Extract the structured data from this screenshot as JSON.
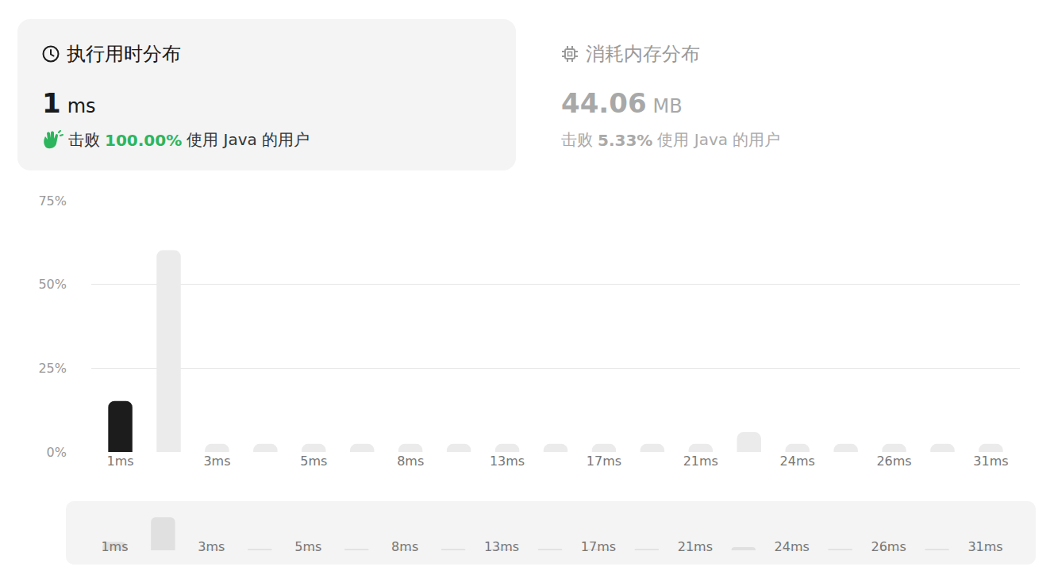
{
  "runtime": {
    "title": "执行用时分布",
    "value": "1",
    "unit": "ms",
    "beat_prefix": "击败",
    "beat": "100.00%",
    "beat_suffix": "使用 Java 的用户"
  },
  "memory": {
    "title": "消耗内存分布",
    "value": "44.06",
    "unit": "MB",
    "beat_prefix": "击败",
    "beat": "5.33%",
    "beat_suffix": "使用 Java 的用户"
  },
  "chart_data": {
    "type": "bar",
    "categories": [
      "1ms",
      null,
      "3ms",
      null,
      "5ms",
      null,
      "8ms",
      null,
      "13ms",
      null,
      "17ms",
      null,
      "21ms",
      null,
      "24ms",
      null,
      "26ms",
      null,
      "31ms"
    ],
    "values": [
      15.2,
      60.2,
      2.4,
      2.4,
      2.4,
      2.4,
      2.4,
      2.4,
      2.4,
      2.4,
      2.4,
      2.4,
      2.4,
      5.9,
      2.4,
      2.4,
      2.4,
      2.4,
      2.4
    ],
    "colors": [
      "#1c1c1c",
      "#ebebeb",
      "#ebebeb",
      "#ebebeb",
      "#ebebeb",
      "#ebebeb",
      "#ebebeb",
      "#ebebeb",
      "#ebebeb",
      "#ebebeb",
      "#ebebeb",
      "#ebebeb",
      "#ebebeb",
      "#ebebeb",
      "#ebebeb",
      "#ebebeb",
      "#ebebeb",
      "#ebebeb",
      "#ebebeb"
    ],
    "ylim": [
      0,
      75
    ],
    "yticks": [
      {
        "value": 0,
        "label": "0%"
      },
      {
        "value": 25,
        "label": "25%"
      },
      {
        "value": 50,
        "label": "50%"
      },
      {
        "value": 75,
        "label": "75%"
      }
    ],
    "grid": true
  }
}
